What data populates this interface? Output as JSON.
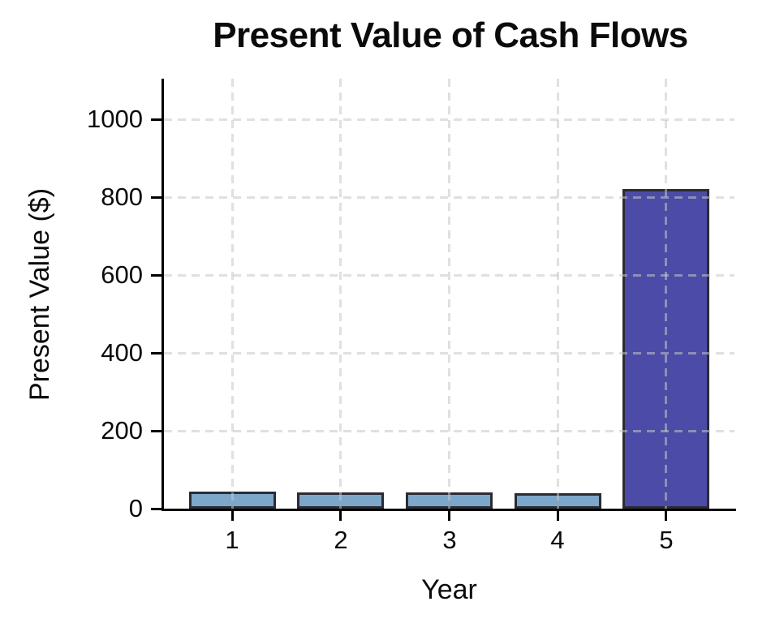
{
  "chart_data": {
    "type": "bar",
    "title": "Present Value of Cash Flows",
    "xlabel": "Year",
    "ylabel": "Present Value ($)",
    "categories": [
      "1",
      "2",
      "3",
      "4",
      "5"
    ],
    "values": [
      38.1,
      36.3,
      34.6,
      32.9,
      814.9
    ],
    "ytick_values": [
      0,
      200,
      400,
      600,
      800,
      1000
    ],
    "ytick_labels": [
      "0",
      "200",
      "400",
      "600",
      "800",
      "1000"
    ],
    "ylim": [
      0,
      1105
    ],
    "legend": "none",
    "grid": {
      "style": "dashed",
      "horizontal": true,
      "vertical": true,
      "drawn_above_bars": true,
      "color": "#c6c6c6"
    },
    "colors": {
      "bar_fill_small": "#7da6cb",
      "bar_fill_tall": "#4c4ba7",
      "bar_edge": "#2b2b33",
      "axis": "#000000",
      "text": "#0b0b0b",
      "background": "#ffffff"
    },
    "bar_fills": [
      "#7da6cb",
      "#7da6cb",
      "#7da6cb",
      "#7da6cb",
      "#4c4ba7"
    ]
  }
}
